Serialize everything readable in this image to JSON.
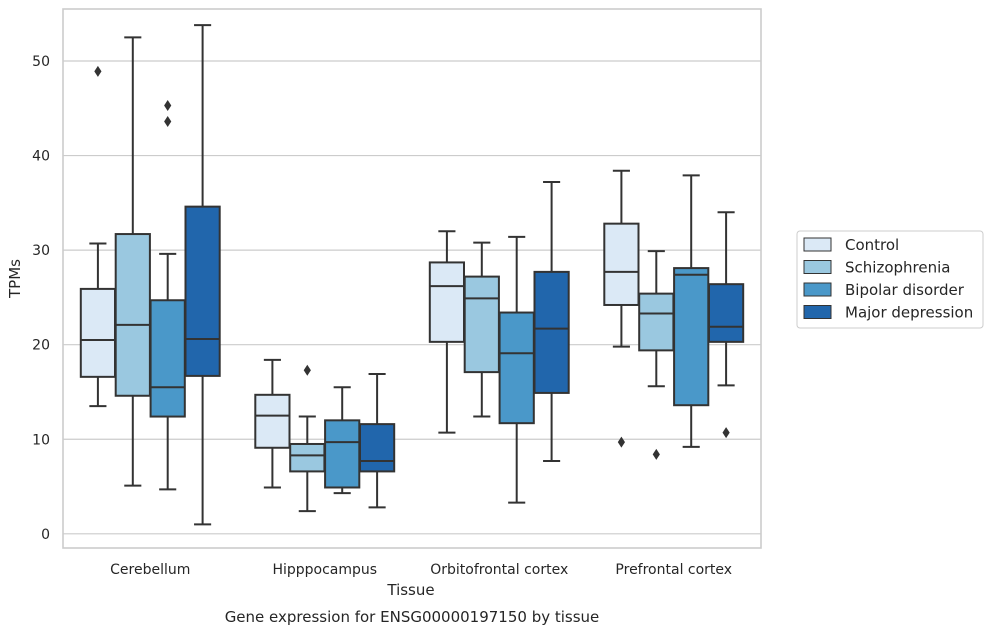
{
  "chart_data": {
    "type": "boxplot",
    "title": "",
    "xlabel": "Tissue",
    "ylabel": "TPMs",
    "caption": "Gene expression for ENSG00000197150 by tissue",
    "ylim": [
      -1.5,
      55.5
    ],
    "yticks": [
      0,
      10,
      20,
      30,
      40,
      50
    ],
    "grid": "horizontal",
    "legend_position": "right",
    "categories": [
      "Cerebellum",
      "Hipppocampus",
      "Orbitofrontal cortex",
      "Prefrontal cortex"
    ],
    "series": [
      {
        "name": "Control",
        "color": "#dbe9f6",
        "boxes": [
          {
            "whislo": 13.5,
            "q1": 16.6,
            "med": 20.5,
            "q3": 25.9,
            "whishi": 30.7,
            "fliers": [
              48.9
            ]
          },
          {
            "whislo": 4.9,
            "q1": 9.1,
            "med": 12.5,
            "q3": 14.7,
            "whishi": 18.4,
            "fliers": []
          },
          {
            "whislo": 10.7,
            "q1": 20.3,
            "med": 26.2,
            "q3": 28.7,
            "whishi": 32.0,
            "fliers": []
          },
          {
            "whislo": 19.8,
            "q1": 24.2,
            "med": 27.7,
            "q3": 32.8,
            "whishi": 38.4,
            "fliers": [
              9.7
            ]
          }
        ]
      },
      {
        "name": "Schizophrenia",
        "color": "#9ac8e0",
        "boxes": [
          {
            "whislo": 5.1,
            "q1": 14.6,
            "med": 22.1,
            "q3": 31.7,
            "whishi": 52.5,
            "fliers": []
          },
          {
            "whislo": 2.4,
            "q1": 6.6,
            "med": 8.3,
            "q3": 9.5,
            "whishi": 12.4,
            "fliers": [
              17.3
            ]
          },
          {
            "whislo": 12.4,
            "q1": 17.1,
            "med": 24.9,
            "q3": 27.2,
            "whishi": 30.8,
            "fliers": []
          },
          {
            "whislo": 15.6,
            "q1": 19.4,
            "med": 23.3,
            "q3": 25.4,
            "whishi": 29.9,
            "fliers": [
              8.4
            ]
          }
        ]
      },
      {
        "name": "Bipolar disorder",
        "color": "#4a98c9",
        "boxes": [
          {
            "whislo": 4.7,
            "q1": 12.4,
            "med": 15.5,
            "q3": 24.7,
            "whishi": 29.6,
            "fliers": [
              43.6,
              45.3
            ]
          },
          {
            "whislo": 4.3,
            "q1": 4.9,
            "med": 9.7,
            "q3": 12.0,
            "whishi": 15.5,
            "fliers": []
          },
          {
            "whislo": 3.3,
            "q1": 11.7,
            "med": 19.1,
            "q3": 23.4,
            "whishi": 31.4,
            "fliers": []
          },
          {
            "whislo": 9.2,
            "q1": 13.6,
            "med": 27.4,
            "q3": 28.1,
            "whishi": 37.9,
            "fliers": []
          }
        ]
      },
      {
        "name": "Major depression",
        "color": "#2166ac",
        "boxes": [
          {
            "whislo": 1.0,
            "q1": 16.7,
            "med": 20.6,
            "q3": 34.6,
            "whishi": 53.8,
            "fliers": []
          },
          {
            "whislo": 2.8,
            "q1": 6.6,
            "med": 7.7,
            "q3": 11.6,
            "whishi": 16.9,
            "fliers": []
          },
          {
            "whislo": 7.7,
            "q1": 14.9,
            "med": 21.7,
            "q3": 27.7,
            "whishi": 37.2,
            "fliers": []
          },
          {
            "whislo": 15.7,
            "q1": 20.3,
            "med": 21.9,
            "q3": 26.4,
            "whishi": 34.0,
            "fliers": [
              10.7
            ]
          }
        ]
      }
    ]
  },
  "colors": {
    "grid": "#cccccc",
    "frame": "#cccccc",
    "box_edge": "#333333",
    "text": "#262626"
  }
}
